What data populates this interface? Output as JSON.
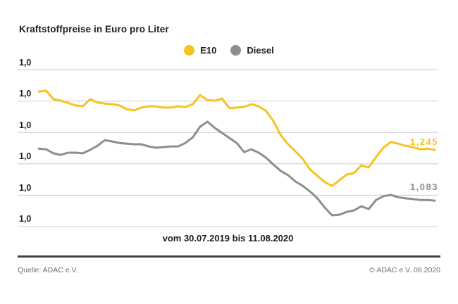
{
  "title": "Kraftstoffpreise in Euro pro Liter",
  "legend": {
    "e10": "E10",
    "diesel": "Diesel"
  },
  "footer": {
    "source": "Quelle: ADAC e.V.",
    "copyright": "© ADAC e.V. 08.2020"
  },
  "chart_data": {
    "type": "line",
    "title": "Kraftstoffpreise in Euro pro Liter",
    "xlabel": "vom 30.07.2019 bis 11.08.2020",
    "ylabel": "Euro pro Liter",
    "x_range": [
      "30.07.2019",
      "11.08.2020"
    ],
    "ylim": [
      0.95,
      1.55
    ],
    "grid": true,
    "gridline_count": 6,
    "legend_position": "top-center",
    "yticks": [
      "1,0",
      "1,0",
      "1,0",
      "1,0",
      "1,0",
      "1,0"
    ],
    "colors": {
      "e10": "#f5c41e",
      "diesel": "#8e8e8e",
      "gridline": "#cccccc",
      "text": "#1d1d1b",
      "footer_text": "#6f6f6f"
    },
    "series": [
      {
        "id": "e10",
        "name": "E10",
        "color": "#f5c41e",
        "end_label": "1,245",
        "values": [
          1.431,
          1.434,
          1.407,
          1.402,
          1.395,
          1.387,
          1.384,
          1.407,
          1.396,
          1.393,
          1.391,
          1.387,
          1.375,
          1.371,
          1.38,
          1.384,
          1.384,
          1.38,
          1.38,
          1.384,
          1.382,
          1.391,
          1.42,
          1.404,
          1.402,
          1.409,
          1.378,
          1.38,
          1.382,
          1.391,
          1.384,
          1.369,
          1.337,
          1.292,
          1.263,
          1.24,
          1.216,
          1.182,
          1.162,
          1.142,
          1.13,
          1.148,
          1.166,
          1.171,
          1.196,
          1.189,
          1.222,
          1.252,
          1.27,
          1.265,
          1.258,
          1.254,
          1.247,
          1.249,
          1.245
        ]
      },
      {
        "id": "diesel",
        "name": "Diesel",
        "color": "#8e8e8e",
        "end_label": "1,083",
        "values": [
          1.249,
          1.247,
          1.234,
          1.229,
          1.236,
          1.236,
          1.234,
          1.245,
          1.258,
          1.276,
          1.272,
          1.267,
          1.265,
          1.263,
          1.263,
          1.256,
          1.252,
          1.254,
          1.256,
          1.256,
          1.267,
          1.285,
          1.319,
          1.335,
          1.315,
          1.299,
          1.283,
          1.267,
          1.238,
          1.247,
          1.236,
          1.22,
          1.198,
          1.178,
          1.164,
          1.144,
          1.13,
          1.112,
          1.09,
          1.061,
          1.036,
          1.038,
          1.047,
          1.052,
          1.065,
          1.056,
          1.085,
          1.097,
          1.101,
          1.094,
          1.09,
          1.088,
          1.085,
          1.085,
          1.083
        ]
      }
    ]
  }
}
